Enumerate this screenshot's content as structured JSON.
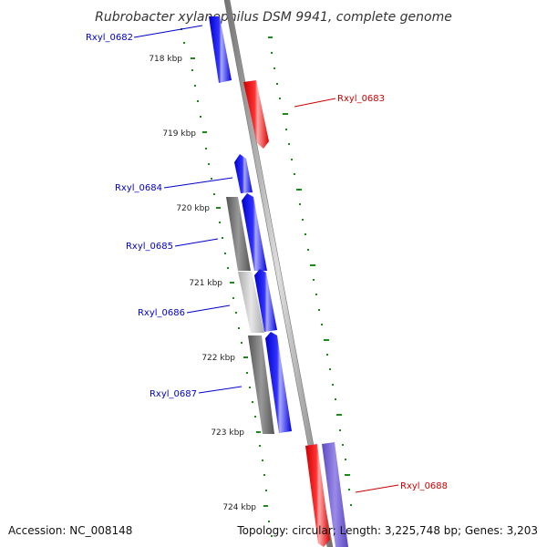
{
  "title": "Rubrobacter xylanophilus DSM 9941, complete genome",
  "footer": {
    "accession": "Accession: NC_008148",
    "topology": "Topology: circular; Length: 3,225,748 bp; Genes: 3,203"
  },
  "ticks": [
    {
      "label": "718 kbp",
      "kbp": 718
    },
    {
      "label": "719 kbp",
      "kbp": 719
    },
    {
      "label": "720 kbp",
      "kbp": 720
    },
    {
      "label": "721 kbp",
      "kbp": 721
    },
    {
      "label": "722 kbp",
      "kbp": 722
    },
    {
      "label": "723 kbp",
      "kbp": 723
    },
    {
      "label": "724 kbp",
      "kbp": 724
    }
  ],
  "genes": [
    {
      "name": "Rxyl_0682",
      "strand": "minus",
      "color": "#0000ee"
    },
    {
      "name": "Rxyl_0683",
      "strand": "plus",
      "color": "#ee0000"
    },
    {
      "name": "Rxyl_0684",
      "strand": "minus",
      "color": "#0000ee"
    },
    {
      "name": "Rxyl_0685",
      "strand": "minus",
      "color": "#0000ee"
    },
    {
      "name": "Rxyl_0686",
      "strand": "minus",
      "color": "#0000ee"
    },
    {
      "name": "Rxyl_0687",
      "strand": "minus",
      "color": "#0000ee"
    },
    {
      "name": "Rxyl_0688",
      "strand": "plus",
      "color": "#ee0000"
    }
  ],
  "colors": {
    "backbone": "#888888",
    "tick_dots": "#1a8a1a",
    "minus_label": "#0000cc",
    "plus_label": "#cc0000",
    "purple_feature": "#7060d0",
    "gray_feature": "#666666",
    "light_gray_feature": "#bbbbbb"
  }
}
